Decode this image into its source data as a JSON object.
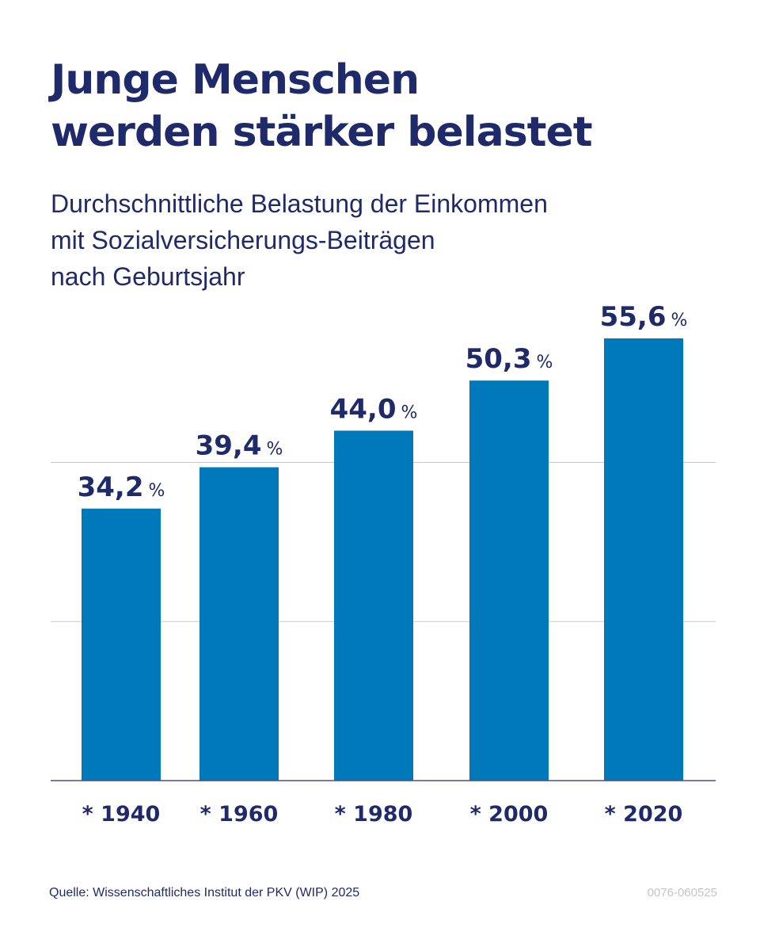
{
  "title_lines": [
    "Junge Menschen",
    "werden stärker belastet"
  ],
  "subtitle_lines": [
    "Durchschnittliche Belastung der Einkommen",
    "mit Sozialversicherungs-Beiträgen",
    "nach Geburtsjahr"
  ],
  "chart_data": {
    "type": "bar",
    "categories": [
      "* 1940",
      "* 1960",
      "* 1980",
      "* 2000",
      "* 2020"
    ],
    "values": [
      34.2,
      39.4,
      44.0,
      50.3,
      55.6
    ],
    "value_labels": [
      "34,2",
      "39,4",
      "44,0",
      "50,3",
      "55,6"
    ],
    "unit": "%",
    "ylim": [
      0,
      60
    ],
    "gridlines": [
      20,
      40
    ],
    "xlabel": "",
    "ylabel": "",
    "bar_color": "#0079bb",
    "label_color": "#1f2a6b"
  },
  "footer": {
    "source": "Quelle: Wissenschaftliches Institut der PKV (WIP) 2025",
    "code": "0076-060525"
  }
}
